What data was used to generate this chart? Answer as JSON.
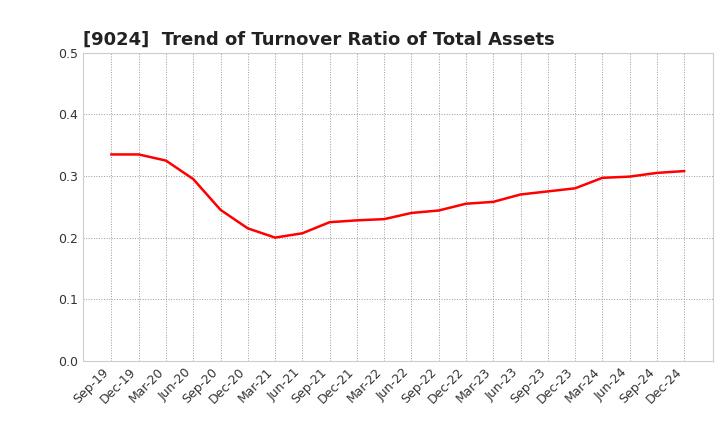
{
  "title": "[9024]  Trend of Turnover Ratio of Total Assets",
  "x_labels": [
    "Sep-19",
    "Dec-19",
    "Mar-20",
    "Jun-20",
    "Sep-20",
    "Dec-20",
    "Mar-21",
    "Jun-21",
    "Sep-21",
    "Dec-21",
    "Mar-22",
    "Jun-22",
    "Sep-22",
    "Dec-22",
    "Mar-23",
    "Jun-23",
    "Sep-23",
    "Dec-23",
    "Mar-24",
    "Jun-24",
    "Sep-24",
    "Dec-24"
  ],
  "values": [
    0.335,
    0.335,
    0.325,
    0.295,
    0.245,
    0.215,
    0.2,
    0.207,
    0.225,
    0.228,
    0.23,
    0.24,
    0.244,
    0.255,
    0.258,
    0.27,
    0.275,
    0.28,
    0.297,
    0.299,
    0.305,
    0.308
  ],
  "line_color": "#FF0000",
  "line_width": 1.8,
  "background_color": "#ffffff",
  "grid_color": "#999999",
  "ylim": [
    0.0,
    0.5
  ],
  "yticks": [
    0.0,
    0.1,
    0.2,
    0.3,
    0.4,
    0.5
  ],
  "title_fontsize": 13,
  "tick_fontsize": 9
}
